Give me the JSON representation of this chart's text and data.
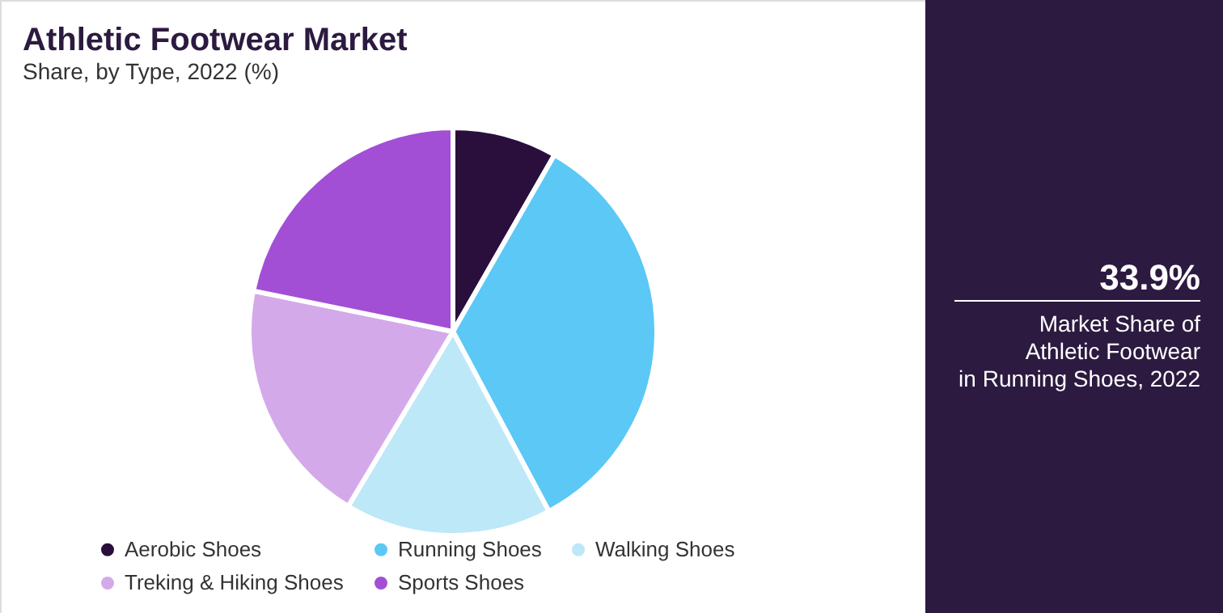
{
  "chart_data": {
    "type": "pie",
    "title": "Athletic Footwear Market",
    "subtitle": "Share, by Type, 2022 (%)",
    "categories": [
      "Aerobic Shoes",
      "Running Shoes",
      "Walking Shoes",
      "Treking & Hiking Shoes",
      "Sports Shoes"
    ],
    "values": [
      8.3,
      33.9,
      16.4,
      19.6,
      21.8
    ],
    "colors": [
      "#2a0f3d",
      "#5bc8f5",
      "#bde8f8",
      "#d4a9ea",
      "#a24fd6"
    ],
    "legend": "bottom",
    "annotations": [
      "33.9%",
      "Market Share of\nAthletic Footwear\nin Running Shoes, 2022"
    ]
  }
}
